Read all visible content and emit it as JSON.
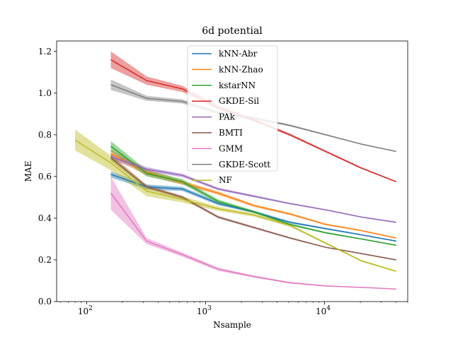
{
  "chart_data": {
    "type": "line",
    "title": "6d potential",
    "xlabel": "Nsample",
    "ylabel": "MAE",
    "xscale": "log",
    "xlim": [
      56,
      50000
    ],
    "ylim": [
      0.0,
      1.25
    ],
    "xticks": [
      {
        "value": 100,
        "base": "10",
        "exp": "2"
      },
      {
        "value": 1000,
        "base": "10",
        "exp": "3"
      },
      {
        "value": 10000,
        "base": "10",
        "exp": "4"
      }
    ],
    "yticks": [
      "0.0",
      "0.2",
      "0.4",
      "0.6",
      "0.8",
      "1.0",
      "1.2"
    ],
    "grid": false,
    "legend_position": "upper-center",
    "series": [
      {
        "name": "kNN-Abr",
        "color": "#1f77b4",
        "x": [
          160,
          320,
          640,
          1280,
          2560,
          5120,
          10240,
          20480,
          40000
        ],
        "y": [
          0.61,
          0.55,
          0.54,
          0.47,
          0.43,
          0.38,
          0.35,
          0.32,
          0.29
        ],
        "band": [
          0.015,
          0.012,
          0.01,
          0.008,
          0.006,
          0.005,
          0.004,
          0.003,
          0.003
        ]
      },
      {
        "name": "kNN-Zhao",
        "color": "#ff7f0e",
        "x": [
          160,
          320,
          640,
          1280,
          2560,
          5120,
          10240,
          20480,
          40000
        ],
        "y": [
          0.71,
          0.62,
          0.57,
          0.52,
          0.46,
          0.42,
          0.37,
          0.34,
          0.305
        ],
        "band": [
          0.02,
          0.015,
          0.01,
          0.008,
          0.006,
          0.005,
          0.004,
          0.003,
          0.003
        ]
      },
      {
        "name": "kstarNN",
        "color": "#2ca02c",
        "x": [
          160,
          320,
          640,
          1280,
          2560,
          5120,
          10240,
          20480,
          40000
        ],
        "y": [
          0.745,
          0.615,
          0.575,
          0.48,
          0.43,
          0.37,
          0.33,
          0.3,
          0.27
        ],
        "band": [
          0.025,
          0.015,
          0.012,
          0.01,
          0.006,
          0.005,
          0.004,
          0.003,
          0.003
        ]
      },
      {
        "name": "GKDE-Sil",
        "color": "#d62728",
        "x": [
          160,
          320,
          640,
          1280,
          2560,
          5120,
          10240,
          20480,
          40000
        ],
        "y": [
          1.16,
          1.06,
          1.02,
          0.93,
          0.87,
          0.8,
          0.72,
          0.64,
          0.575
        ],
        "band": [
          0.04,
          0.02,
          0.015,
          0.01,
          0.008,
          0.006,
          0.005,
          0.004,
          0.003
        ]
      },
      {
        "name": "PAk",
        "color": "#9467bd",
        "x": [
          160,
          320,
          640,
          1280,
          2560,
          5120,
          10240,
          20480,
          40000
        ],
        "y": [
          0.695,
          0.635,
          0.605,
          0.54,
          0.505,
          0.47,
          0.44,
          0.405,
          0.38
        ],
        "band": [
          0.015,
          0.01,
          0.008,
          0.006,
          0.005,
          0.004,
          0.003,
          0.003,
          0.003
        ]
      },
      {
        "name": "BMTI",
        "color": "#8c564b",
        "x": [
          160,
          320,
          640,
          1280,
          2560,
          5120,
          10240,
          20480,
          40000
        ],
        "y": [
          0.69,
          0.55,
          0.5,
          0.405,
          0.355,
          0.305,
          0.26,
          0.23,
          0.2
        ],
        "band": [
          0.015,
          0.01,
          0.008,
          0.006,
          0.005,
          0.004,
          0.003,
          0.003,
          0.003
        ]
      },
      {
        "name": "GMM",
        "color": "#e377c2",
        "x": [
          160,
          320,
          640,
          1280,
          2560,
          5120,
          10240,
          20480,
          40000
        ],
        "y": [
          0.52,
          0.29,
          0.225,
          0.155,
          0.12,
          0.09,
          0.075,
          0.068,
          0.06
        ],
        "band": [
          0.08,
          0.015,
          0.01,
          0.008,
          0.005,
          0.004,
          0.003,
          0.002,
          0.002
        ]
      },
      {
        "name": "GKDE-Scott",
        "color": "#7f7f7f",
        "x": [
          160,
          320,
          640,
          1280,
          2560,
          5120,
          10240,
          20480,
          40000
        ],
        "y": [
          1.04,
          0.975,
          0.96,
          0.905,
          0.88,
          0.845,
          0.8,
          0.755,
          0.72
        ],
        "band": [
          0.025,
          0.012,
          0.01,
          0.008,
          0.006,
          0.005,
          0.004,
          0.003,
          0.003
        ]
      },
      {
        "name": "NF",
        "color": "#bcbd22",
        "x": [
          80,
          160,
          320,
          640,
          1280,
          2560,
          5120,
          10240,
          20480,
          40000
        ],
        "y": [
          0.775,
          0.665,
          0.53,
          0.49,
          0.445,
          0.415,
          0.365,
          0.28,
          0.195,
          0.145
        ],
        "band": [
          0.05,
          0.035,
          0.025,
          0.015,
          0.01,
          0.008,
          0.006,
          0.005,
          0.004,
          0.004
        ]
      }
    ]
  }
}
